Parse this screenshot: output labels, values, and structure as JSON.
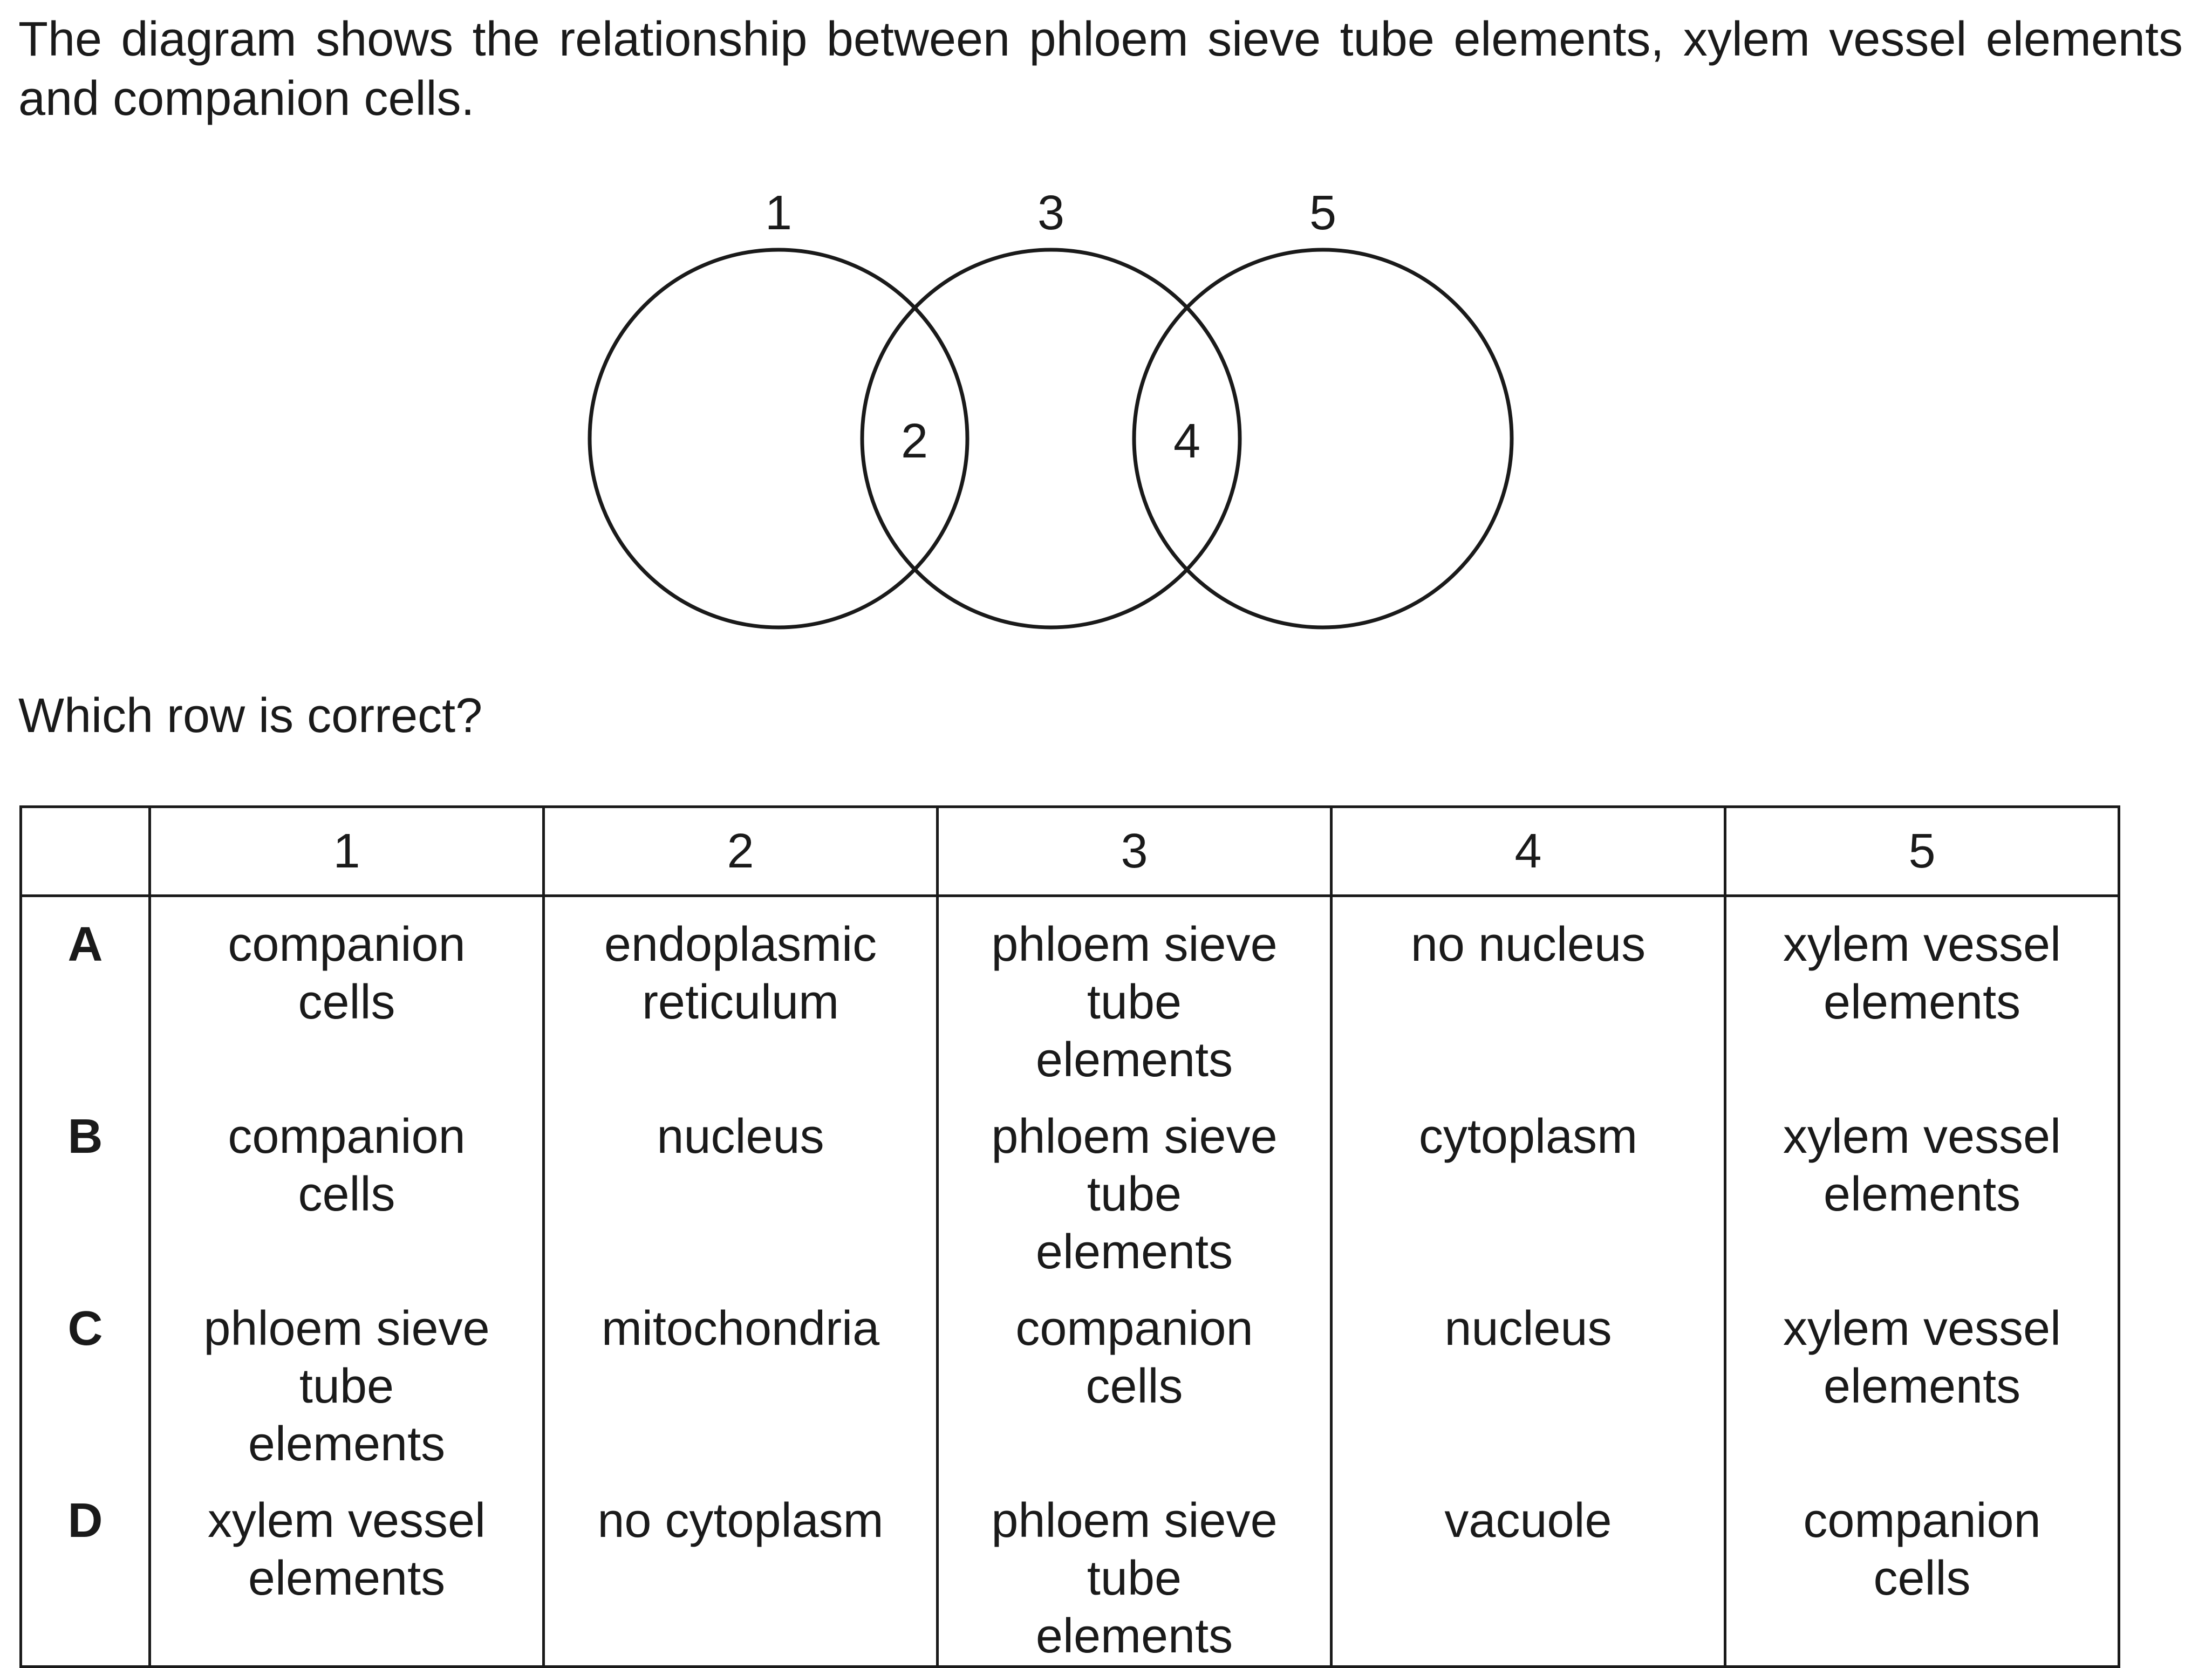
{
  "intro_text": "The diagram shows the relationship between phloem sieve tube elements, xylem vessel elements and companion cells.",
  "diagram": {
    "labels": [
      "1",
      "2",
      "3",
      "4",
      "5"
    ]
  },
  "question": "Which row is correct?",
  "table": {
    "headers": [
      "",
      "1",
      "2",
      "3",
      "4",
      "5"
    ],
    "rows": [
      {
        "letter": "A",
        "cells": [
          "companion cells",
          "endoplasmic reticulum",
          "phloem sieve tube elements",
          "no nucleus",
          "xylem vessel elements"
        ]
      },
      {
        "letter": "B",
        "cells": [
          "companion cells",
          "nucleus",
          "phloem sieve tube elements",
          "cytoplasm",
          "xylem vessel elements"
        ]
      },
      {
        "letter": "C",
        "cells": [
          "phloem sieve tube elements",
          "mitochondria",
          "companion cells",
          "nucleus",
          "xylem vessel elements"
        ]
      },
      {
        "letter": "D",
        "cells": [
          "xylem vessel elements",
          "no cytoplasm",
          "phloem sieve tube elements",
          "vacuole",
          "companion cells"
        ]
      }
    ]
  }
}
